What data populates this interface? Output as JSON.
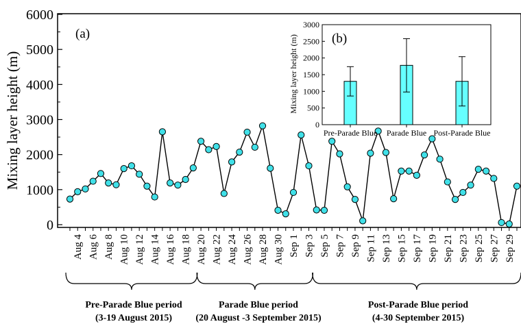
{
  "chart_data": [
    {
      "type": "line",
      "panel_label": "(a)",
      "ylabel": "Mixing layer height (m)",
      "ylim": [
        0,
        6000
      ],
      "yticks": [
        0,
        1000,
        2000,
        3000,
        4000,
        5000,
        6000
      ],
      "x_tick_labels": [
        "Aug 4",
        "Aug 6",
        "Aug 8",
        "Aug 10",
        "Aug 12",
        "Aug 14",
        "Aug 16",
        "Aug 18",
        "Aug 20",
        "Aug 22",
        "Aug 24",
        "Aug 26",
        "Aug 28",
        "Aug 30",
        "Sep 1",
        "Sep 3",
        "Sep 5",
        "Sep 7",
        "Sep 9",
        "Sep 11",
        "Sep 13",
        "Sep 15",
        "Sep 17",
        "Sep 19",
        "Sep 21",
        "Sep 23",
        "Sep 25",
        "Sep 27",
        "Sep 29"
      ],
      "series": [
        {
          "values": [
            730,
            940,
            1020,
            1240,
            1460,
            1190,
            1140,
            1600,
            1680,
            1440,
            1100,
            790,
            2650,
            1190,
            1130,
            1290,
            1620,
            2380,
            2140,
            2230,
            890,
            1790,
            2070,
            2640,
            2210,
            2820,
            1610,
            410,
            310,
            920,
            2560,
            1680,
            420,
            410,
            2380,
            2020,
            1080,
            720,
            110,
            2040,
            2670,
            2060,
            740,
            1530,
            1530,
            1410,
            1990,
            2450,
            1870,
            1220,
            720,
            920,
            1130,
            1580,
            1530,
            1320,
            60,
            20,
            1100
          ]
        }
      ],
      "periods": [
        {
          "name": "Pre-Parade Blue period",
          "dates": "(3-19 August 2015)"
        },
        {
          "name": "Parade Blue period",
          "dates": "(20 August -3 September 2015)"
        },
        {
          "name": "Post-Parade Blue period",
          "dates": "(4-30 September 2015)"
        }
      ],
      "marker_color": "#40e0e8",
      "line_color": "#000000"
    },
    {
      "type": "bar",
      "panel_label": "(b)",
      "ylabel": "Mixing layer height (m)",
      "ylim": [
        0,
        3000
      ],
      "yticks": [
        0,
        500,
        1000,
        1500,
        2000,
        2500,
        3000
      ],
      "categories": [
        "Pre-Parade Blue",
        "Parade Blue",
        "Post-Parade Blue"
      ],
      "values": [
        1300,
        1780,
        1300
      ],
      "errors": [
        440,
        800,
        740
      ],
      "bar_color": "#66ffff"
    }
  ]
}
